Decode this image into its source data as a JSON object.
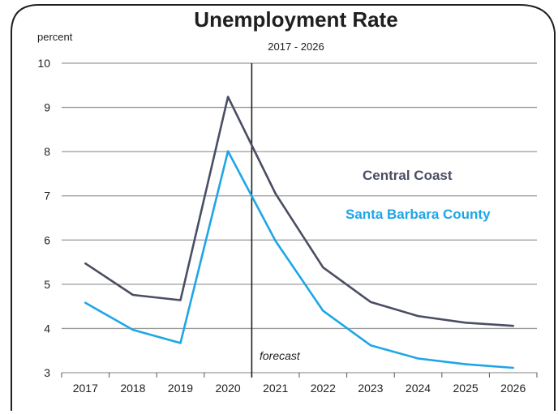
{
  "chart_data": {
    "type": "line",
    "title": "Unemployment Rate",
    "subtitle": "2017 - 2026",
    "ylabel": "percent",
    "xlabel": "",
    "x": [
      "2017",
      "2018",
      "2019",
      "2020",
      "2021",
      "2022",
      "2023",
      "2024",
      "2025",
      "2026"
    ],
    "ylim": [
      3,
      10
    ],
    "yticks": [
      "3",
      "4",
      "5",
      "6",
      "7",
      "8",
      "9",
      "10"
    ],
    "grid": "horizontal",
    "legend_placement": "right, inside plot",
    "annotation": {
      "text": "forecast",
      "divider_between": [
        "2020",
        "2021"
      ]
    },
    "series": [
      {
        "name": "Central Coast",
        "color": "#4a4e63",
        "values": [
          5.47,
          4.76,
          4.64,
          9.24,
          7.05,
          5.38,
          4.6,
          4.28,
          4.13,
          4.06
        ]
      },
      {
        "name": "Santa Barbara County",
        "color": "#1ea6e6",
        "values": [
          4.58,
          3.97,
          3.67,
          8.01,
          5.98,
          4.4,
          3.62,
          3.32,
          3.19,
          3.11
        ]
      }
    ]
  }
}
